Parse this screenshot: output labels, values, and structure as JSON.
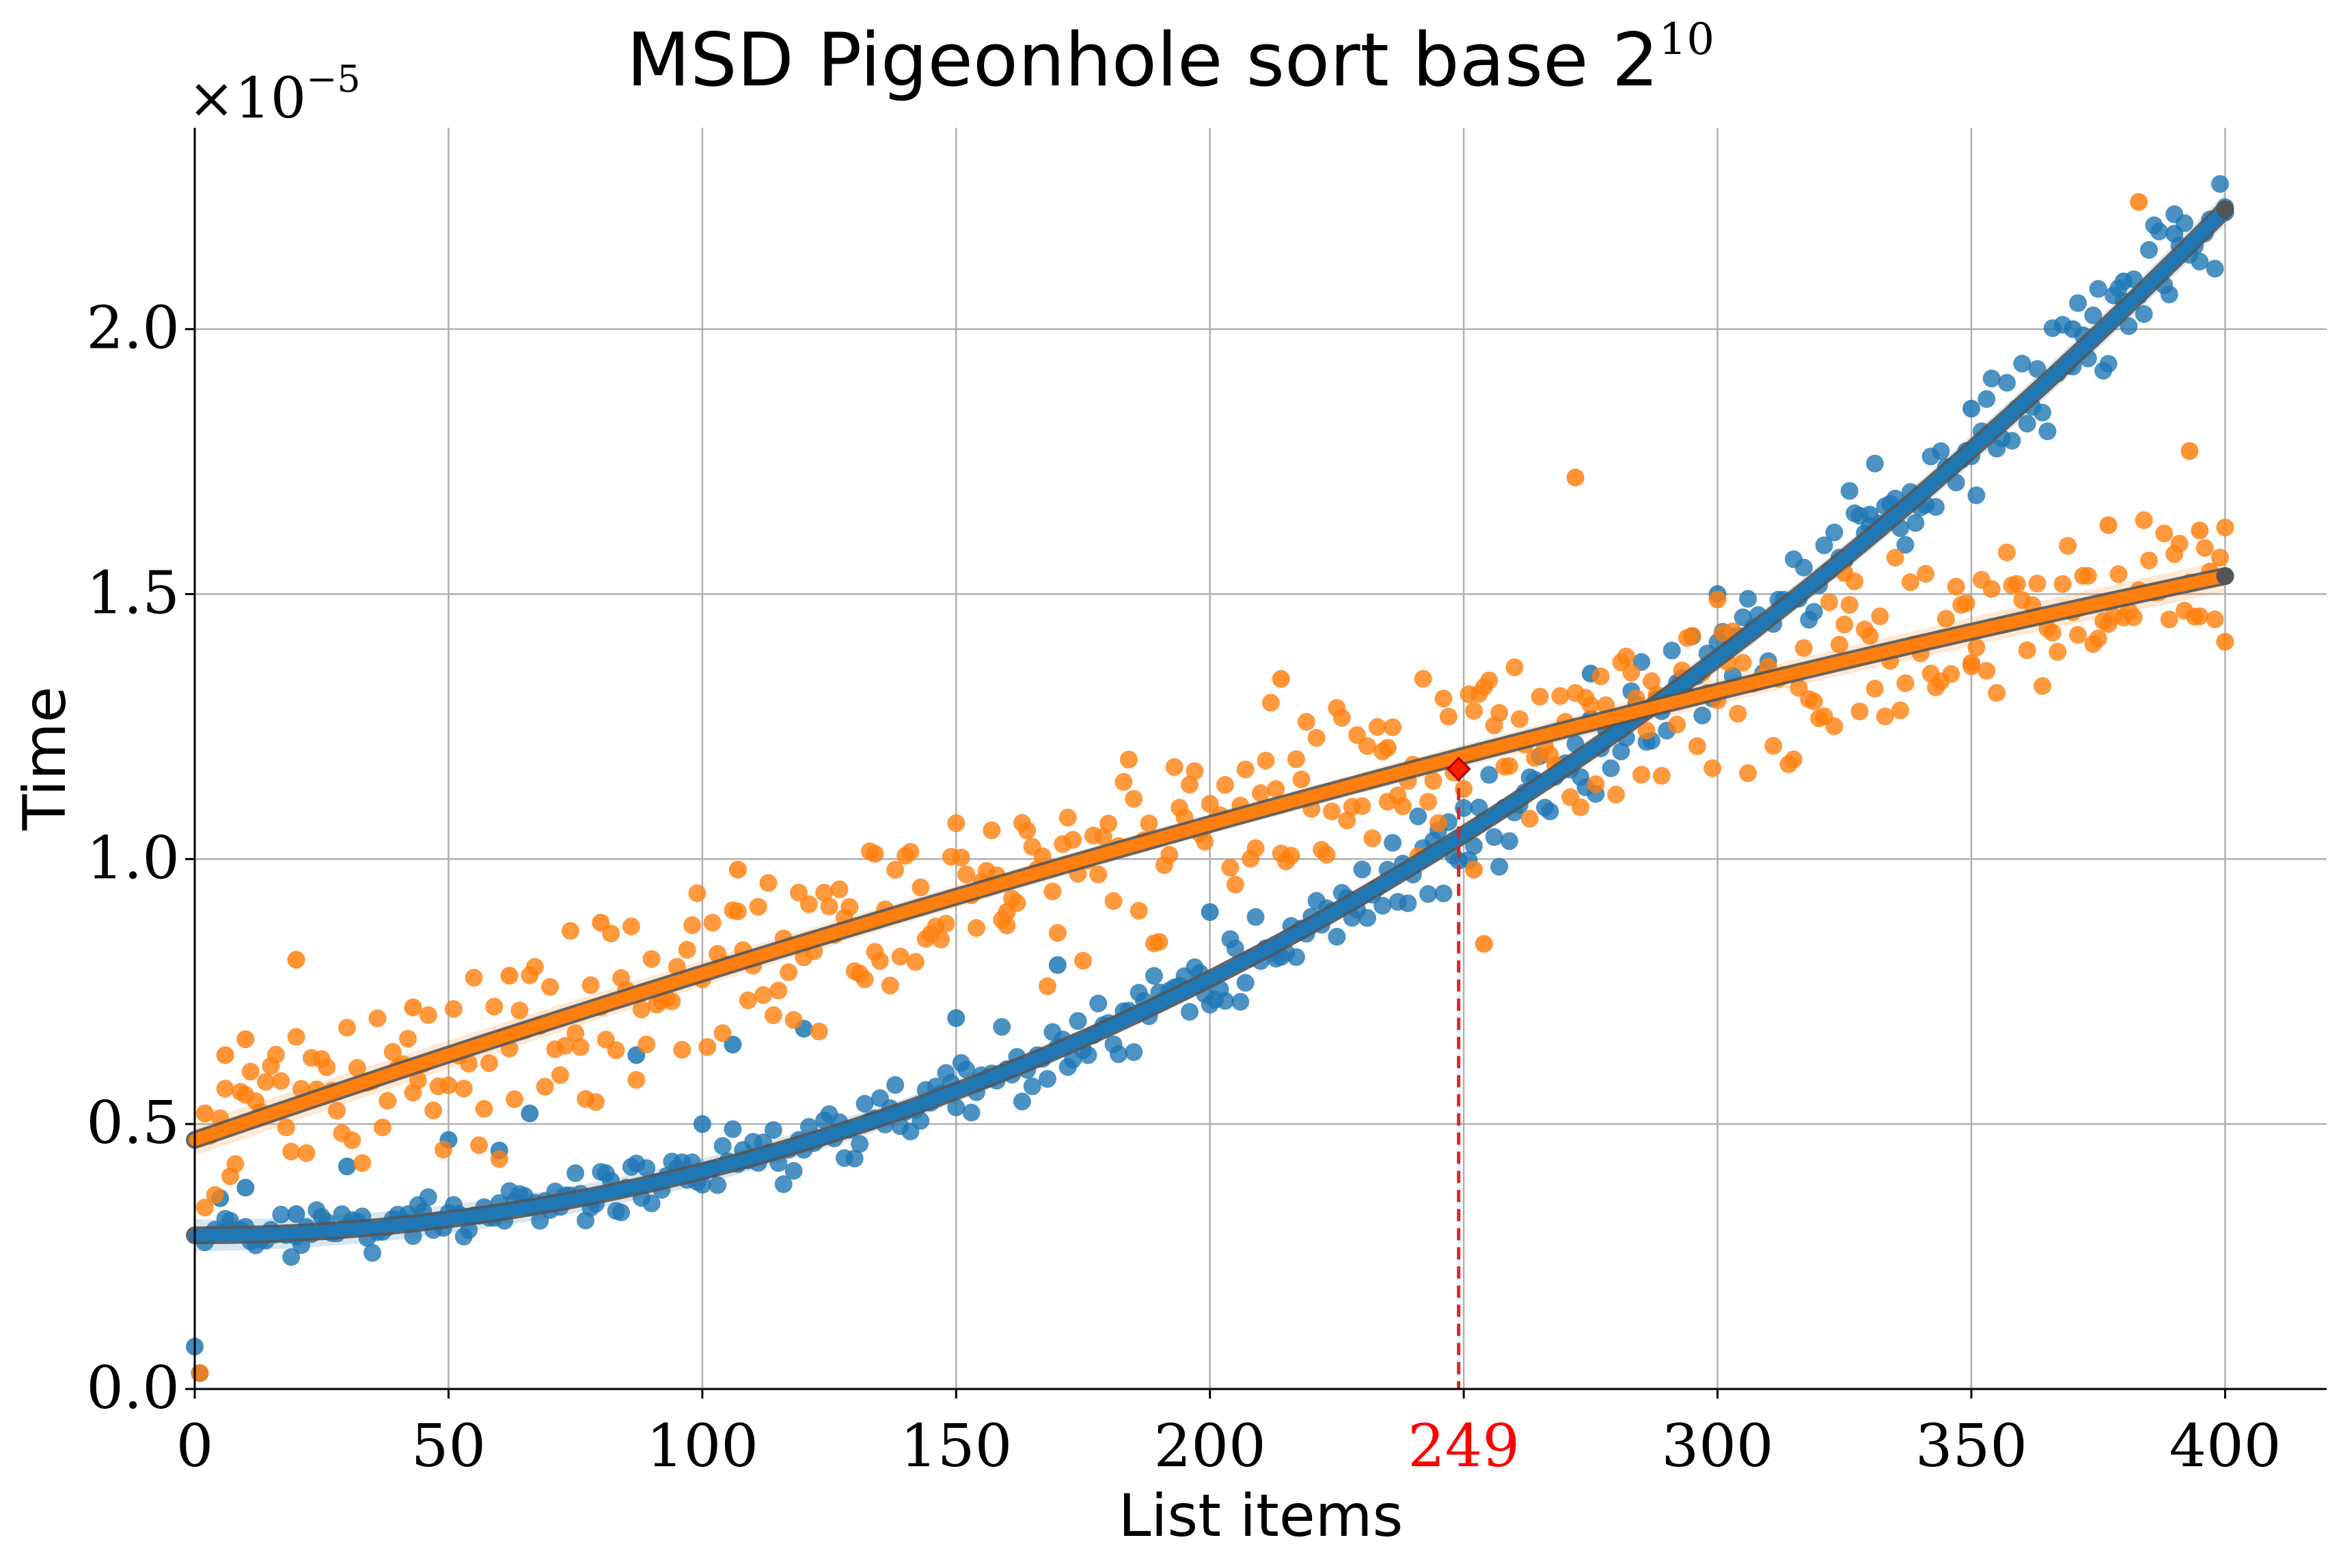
{
  "chart_data": {
    "type": "scatter",
    "title": "MSD Pigeonhole sort base 2",
    "title_exponent": "10",
    "xlabel": "List items",
    "ylabel": "Time",
    "y_multiplier_base": "×10",
    "y_multiplier_exponent": "−5",
    "xlim": [
      0,
      420
    ],
    "ylim": [
      0,
      2.38
    ],
    "y_scale_factor": 1e-05,
    "x_ticks": [
      0,
      50,
      100,
      150,
      200,
      250,
      300,
      350,
      400
    ],
    "x_tick_labels": [
      "0",
      "50",
      "100",
      "150",
      "200",
      "249",
      "300",
      "350",
      "400"
    ],
    "y_ticks": [
      0.0,
      0.5,
      1.0,
      1.5,
      2.0
    ],
    "y_tick_labels": [
      "0.0",
      "0.5",
      "1.0",
      "1.5",
      "2.0"
    ],
    "grid": true,
    "intersection": {
      "x": 249,
      "y": 1.17,
      "label": "249",
      "color": "#ff0000"
    },
    "colors": {
      "blue": "#1f77b4",
      "orange": "#ff7f0e",
      "fit_edge": "#555555",
      "grid": "#b0b0b0"
    },
    "series": [
      {
        "color": "#1f77b4",
        "fit": {
          "a": 0.29,
          "b": 0.0,
          "c": 1.21e-05
        },
        "points_samples": [
          [
            0,
            0.08
          ],
          [
            1,
            0.03
          ],
          [
            5,
            0.36
          ],
          [
            10,
            0.38
          ],
          [
            20,
            0.33
          ],
          [
            30,
            0.42
          ],
          [
            50,
            0.47
          ],
          [
            60,
            0.45
          ],
          [
            66,
            0.52
          ],
          [
            87,
            0.63
          ],
          [
            100,
            0.5
          ],
          [
            106,
            0.65
          ],
          [
            120,
            0.68
          ],
          [
            150,
            0.7
          ],
          [
            170,
            0.8
          ],
          [
            200,
            0.9
          ],
          [
            249,
            1.17
          ],
          [
            275,
            1.35
          ],
          [
            300,
            1.5
          ],
          [
            330,
            1.65
          ],
          [
            350,
            1.85
          ],
          [
            370,
            2.0
          ],
          [
            380,
            2.09
          ],
          [
            390,
            2.18
          ],
          [
            400,
            2.22
          ]
        ]
      },
      {
        "color": "#ff7f0e",
        "fit": {
          "a": 0.47,
          "b": 0.0033,
          "c": -1.6e-06
        },
        "points_samples": [
          [
            1,
            0.03
          ],
          [
            2,
            0.52
          ],
          [
            6,
            0.63
          ],
          [
            10,
            0.66
          ],
          [
            20,
            0.81
          ],
          [
            43,
            0.72
          ],
          [
            62,
            0.78
          ],
          [
            80,
            0.88
          ],
          [
            107,
            0.98
          ],
          [
            134,
            1.01
          ],
          [
            160,
            0.9
          ],
          [
            214,
            1.34
          ],
          [
            235,
            1.21
          ],
          [
            252,
            0.98
          ],
          [
            254,
            0.84
          ],
          [
            272,
            1.72
          ],
          [
            300,
            1.49
          ],
          [
            325,
            1.54
          ],
          [
            350,
            1.37
          ],
          [
            377,
            1.63
          ],
          [
            383,
            2.24
          ],
          [
            393,
            1.77
          ],
          [
            395,
            1.62
          ],
          [
            400,
            1.41
          ]
        ]
      }
    ]
  }
}
